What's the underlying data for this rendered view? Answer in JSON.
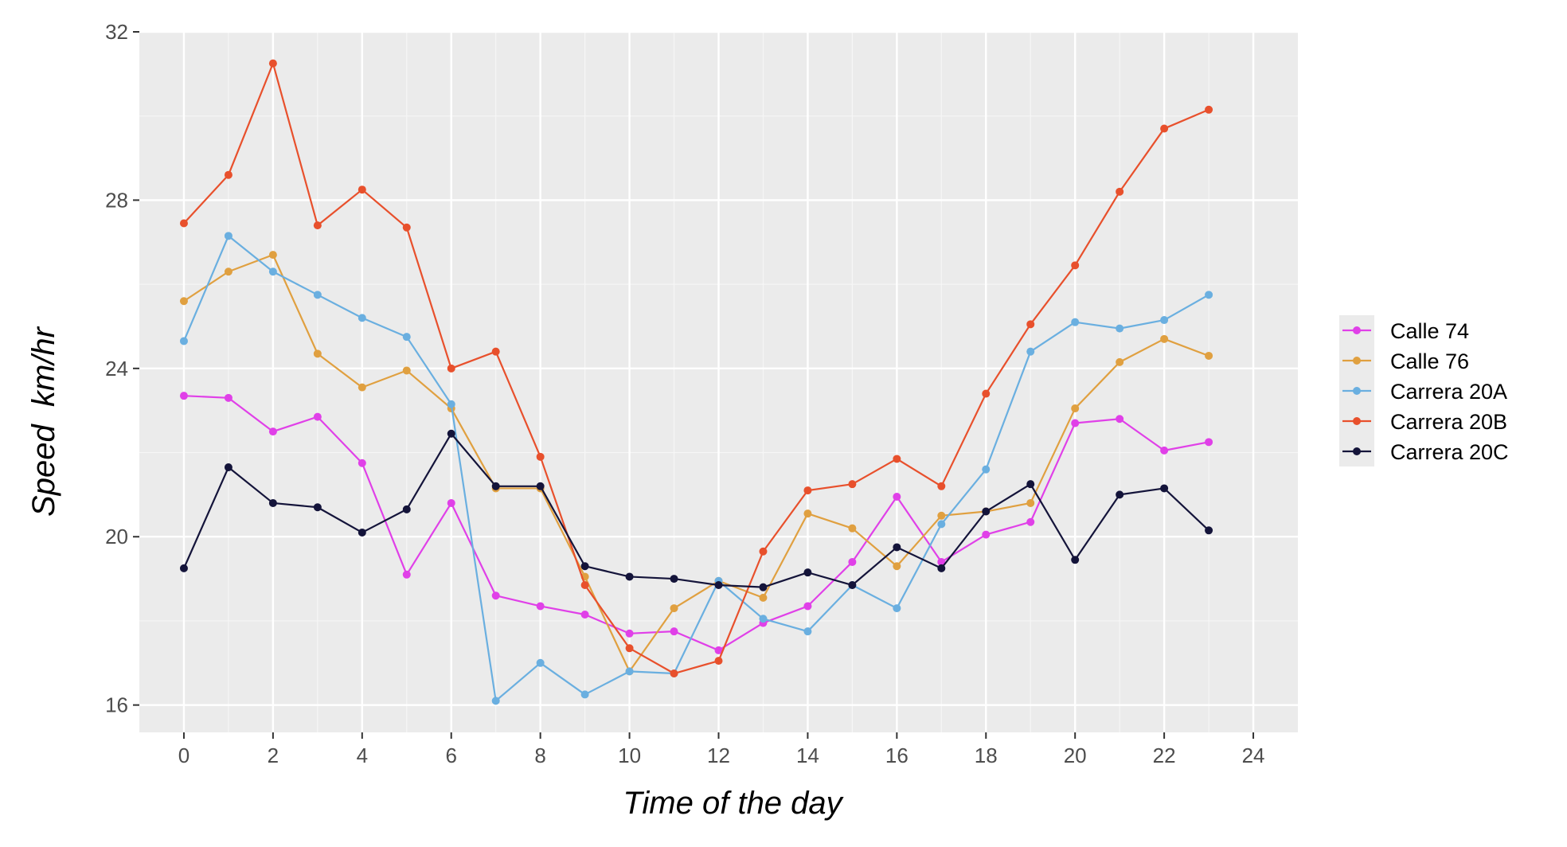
{
  "chart_data": {
    "type": "line",
    "title": "",
    "xlabel": "Time of the day",
    "ylabel": "Speed  km/hr",
    "xlim": [
      -1,
      25
    ],
    "ylim": [
      15.35,
      32
    ],
    "xticks": [
      0,
      2,
      4,
      6,
      8,
      10,
      12,
      14,
      16,
      18,
      20,
      22,
      24
    ],
    "yticks": [
      16,
      20,
      24,
      28,
      32
    ],
    "grid": true,
    "legend_position": "right",
    "x": [
      0,
      1,
      2,
      3,
      4,
      5,
      6,
      7,
      8,
      9,
      10,
      11,
      12,
      13,
      14,
      15,
      16,
      17,
      18,
      19,
      20,
      21,
      22,
      23
    ],
    "series": [
      {
        "name": "Calle 74",
        "color": "#e040e8",
        "values": [
          23.35,
          23.3,
          22.5,
          22.85,
          21.75,
          19.1,
          20.8,
          18.6,
          18.35,
          18.15,
          17.7,
          17.75,
          17.3,
          17.95,
          18.35,
          19.4,
          20.95,
          19.4,
          20.05,
          20.35,
          22.7,
          22.8,
          22.05,
          22.25
        ]
      },
      {
        "name": "Calle 76",
        "color": "#e0a040",
        "values": [
          25.6,
          26.3,
          26.7,
          24.35,
          23.55,
          23.95,
          23.05,
          21.15,
          21.15,
          19.05,
          16.8,
          18.3,
          18.95,
          18.55,
          20.55,
          20.2,
          19.3,
          20.5,
          20.6,
          20.8,
          23.05,
          24.15,
          24.7,
          24.3
        ]
      },
      {
        "name": "Carrera 20A",
        "color": "#6aafe0",
        "values": [
          24.65,
          27.15,
          26.3,
          25.75,
          25.2,
          24.75,
          23.15,
          16.1,
          17.0,
          16.25,
          16.8,
          16.75,
          18.95,
          18.05,
          17.75,
          18.85,
          18.3,
          20.3,
          21.6,
          24.4,
          25.1,
          24.95,
          25.15,
          25.75
        ]
      },
      {
        "name": "Carrera 20B",
        "color": "#e8502c",
        "values": [
          27.45,
          28.6,
          31.25,
          27.4,
          28.25,
          27.35,
          24.0,
          24.4,
          21.9,
          18.85,
          17.35,
          16.75,
          17.05,
          19.65,
          21.1,
          21.25,
          21.85,
          21.2,
          23.4,
          25.05,
          26.45,
          28.2,
          29.7,
          30.15
        ]
      },
      {
        "name": "Carrera 20C",
        "color": "#14143a",
        "values": [
          19.25,
          21.65,
          20.8,
          20.7,
          20.1,
          20.65,
          22.45,
          21.2,
          21.2,
          19.3,
          19.05,
          19.0,
          18.85,
          18.8,
          19.15,
          18.85,
          19.75,
          19.25,
          20.6,
          21.25,
          19.45,
          21.0,
          21.15,
          20.15
        ]
      }
    ]
  }
}
